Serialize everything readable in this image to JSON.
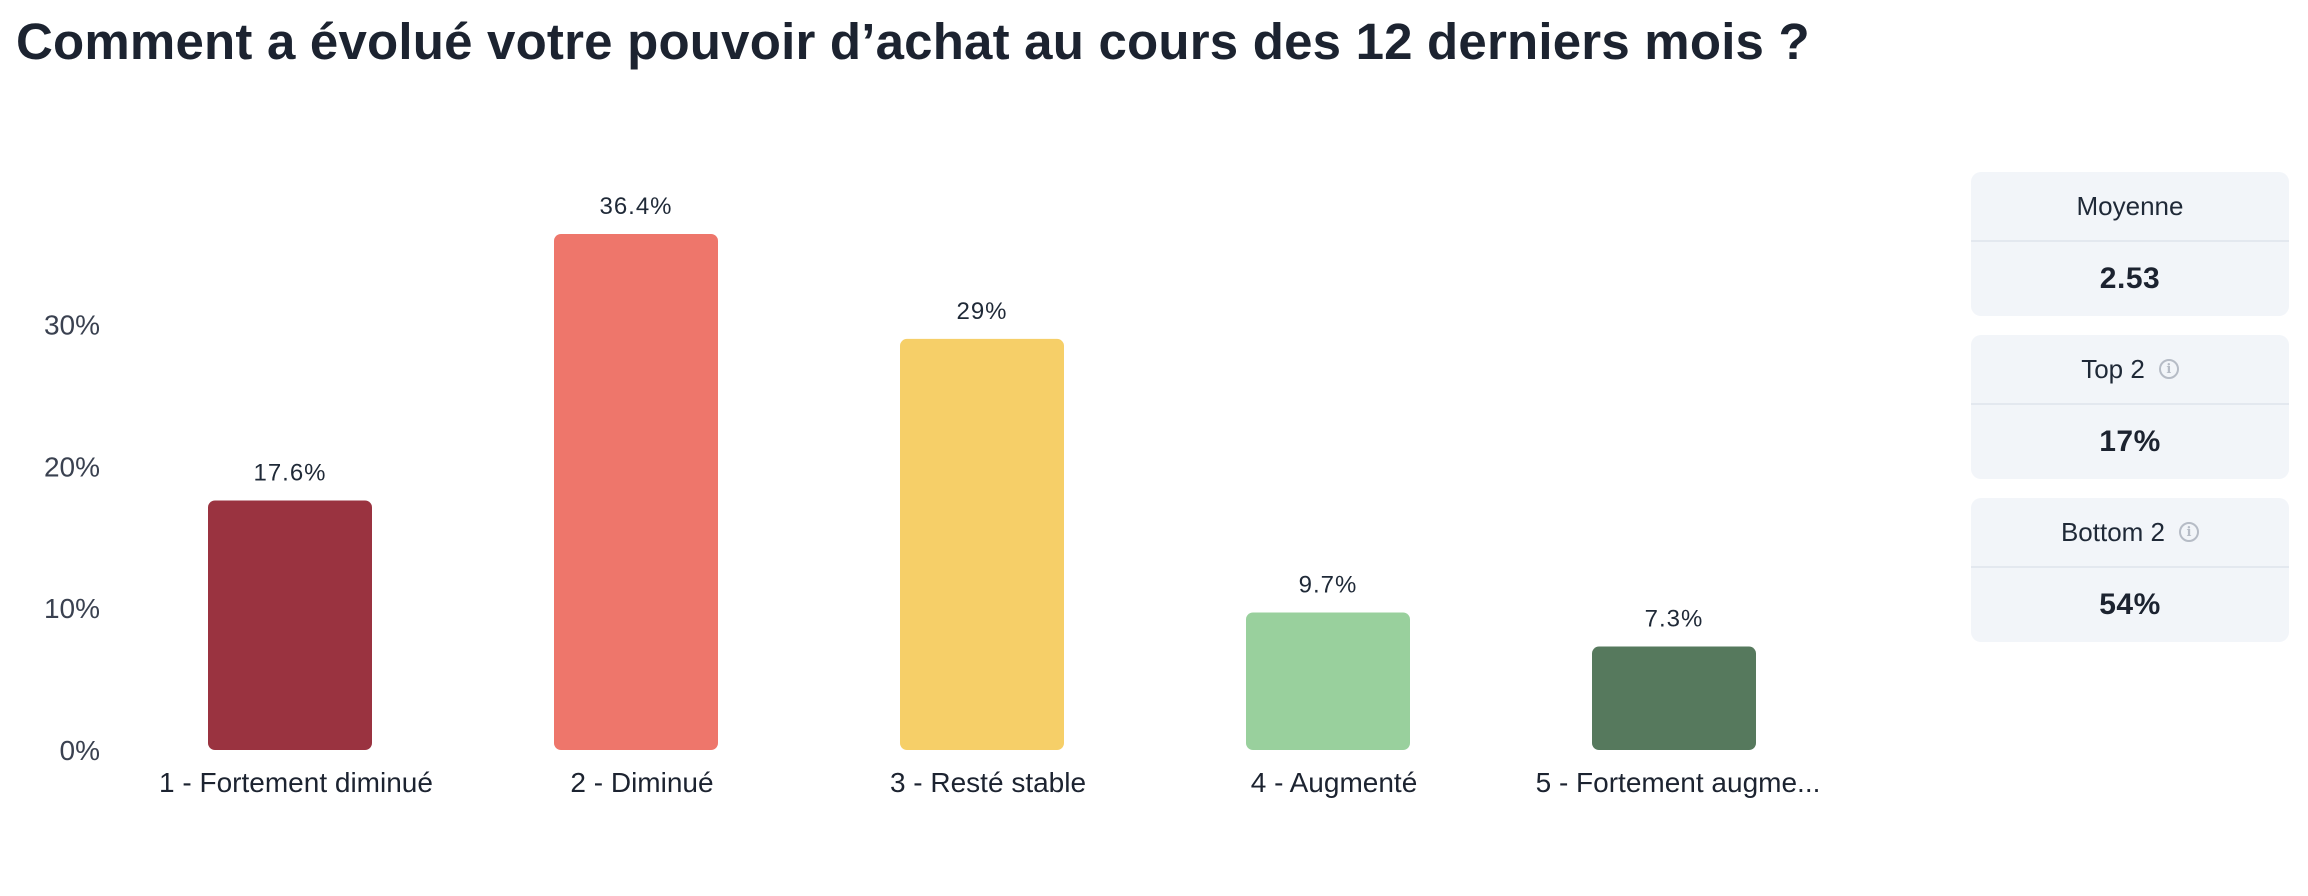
{
  "title": "Comment a évolué votre pouvoir d’achat au cours des 12 derniers mois ?",
  "chart_data": {
    "type": "bar",
    "categories": [
      "1 - Fortement diminué",
      "2 - Diminué",
      "3 - Resté stable",
      "4 - Augmenté",
      "5 - Fortement augme..."
    ],
    "values": [
      17.6,
      36.4,
      29,
      9.7,
      7.3
    ],
    "value_labels": [
      "17.6%",
      "36.4%",
      "29%",
      "9.7%",
      "7.3%"
    ],
    "colors": [
      "#9a3340",
      "#ee766b",
      "#f6cf68",
      "#99d09d",
      "#56795d"
    ],
    "yticks": [
      {
        "value": 0,
        "label": "0%"
      },
      {
        "value": 10,
        "label": "10%"
      },
      {
        "value": 20,
        "label": "20%"
      },
      {
        "value": 30,
        "label": "30%"
      }
    ],
    "ylim": [
      0,
      36.4
    ],
    "xlabel": "",
    "ylabel": "",
    "grid": false,
    "legend": "none"
  },
  "stats": {
    "mean": {
      "label": "Moyenne",
      "value": "2.53"
    },
    "top2": {
      "label": "Top 2",
      "value": "17%",
      "icon": "info-icon"
    },
    "bottom2": {
      "label": "Bottom 2",
      "value": "54%",
      "icon": "info-icon"
    }
  }
}
